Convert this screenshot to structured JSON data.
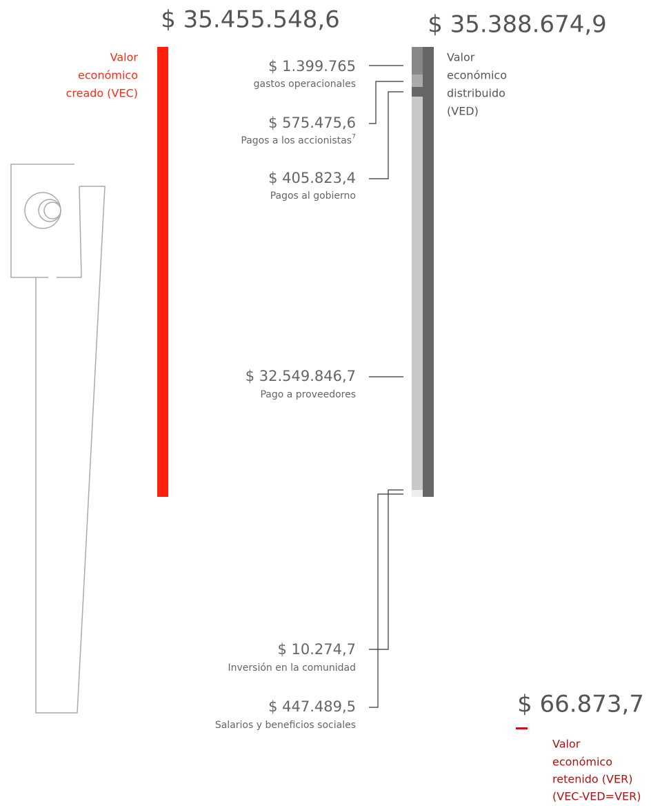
{
  "created": {
    "amount": "$ 35.455.548,6",
    "label": [
      "Valor",
      "económico",
      "creado (VEC)"
    ]
  },
  "distributed": {
    "amount": "$ 35.388.674,9",
    "label": [
      "Valor",
      "económico",
      "distribuido",
      "(VED)"
    ]
  },
  "items": [
    {
      "amount": "$ 1.399.765",
      "label": "gastos operacionales"
    },
    {
      "amount": "$ 575.475,6",
      "label": "Pagos a los accionistas",
      "footnote": "7"
    },
    {
      "amount": "$ 405.823,4",
      "label": "Pagos al gobierno"
    },
    {
      "amount": "$ 32.549.846,7",
      "label": "Pago a proveedores"
    },
    {
      "amount": "$ 10.274,7",
      "label": "Inversión en la comunidad"
    },
    {
      "amount": "$ 447.489,5",
      "label": "Salarios y beneficios sociales"
    }
  ],
  "retained": {
    "amount": "$ 66.873,7",
    "label": [
      "Valor",
      "económico",
      "retenido (VER)",
      "(VEC-VED=VER)"
    ]
  }
}
